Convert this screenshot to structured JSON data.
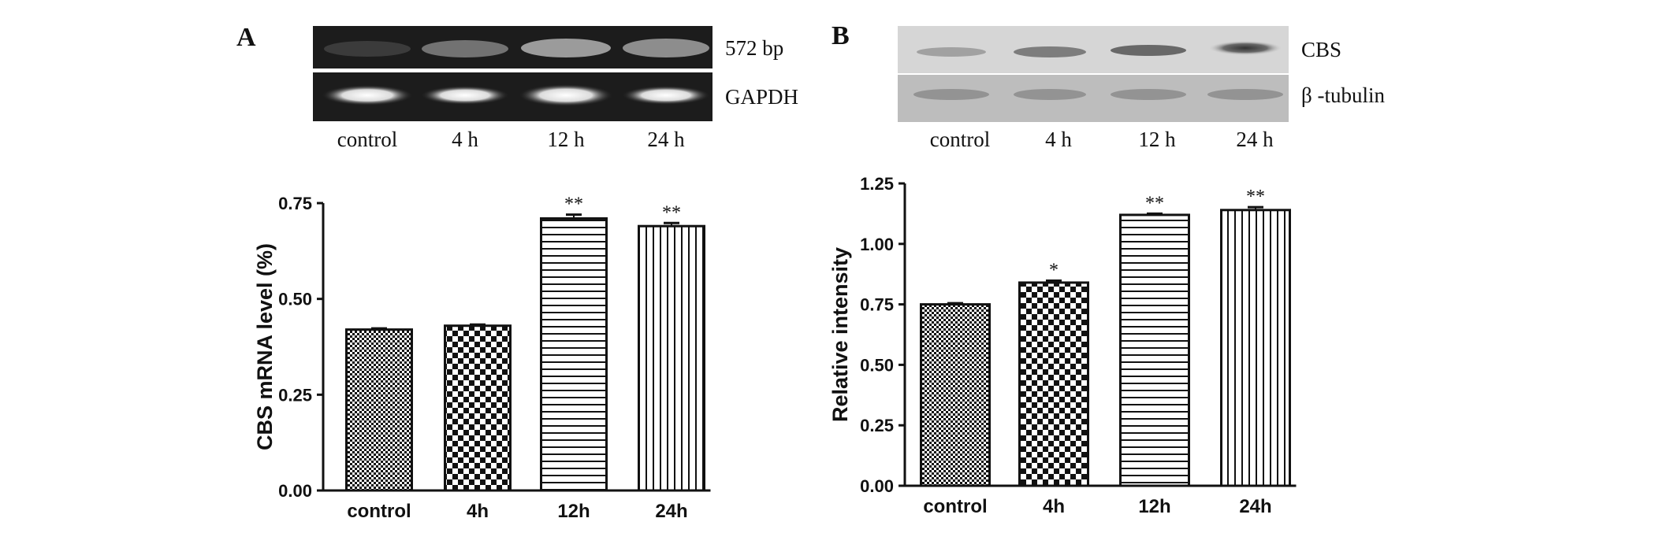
{
  "panels": [
    {
      "label": "A",
      "blot_type": "gel",
      "band_labels": [
        "572 bp",
        "GAPDH"
      ],
      "lane_labels": [
        "control",
        "4 h",
        "12 h",
        "24 h"
      ]
    },
    {
      "label": "B",
      "blot_type": "western",
      "band_labels": [
        "CBS",
        "β -tubulin"
      ],
      "lane_labels": [
        "control",
        "4 h",
        "12 h",
        "24 h"
      ]
    }
  ],
  "colors": {
    "ink": "#111111",
    "gel_bg": "#1c1c1c",
    "blot_bg": "#c9c9c9"
  },
  "chart_data": [
    {
      "type": "bar",
      "panel": "A",
      "categories": [
        "control",
        "4h",
        "12h",
        "24h"
      ],
      "values": [
        0.42,
        0.43,
        0.71,
        0.69
      ],
      "errors": [
        0.003,
        0.003,
        0.01,
        0.008
      ],
      "significance": [
        "",
        "",
        "**",
        "**"
      ],
      "patterns": [
        "fine-check",
        "check",
        "hlines",
        "vlines"
      ],
      "xlabel": "",
      "ylabel": "CBS mRNA level (%)",
      "ylim": [
        0,
        0.75
      ],
      "yticks": [
        "0.00",
        "0.25",
        "0.50",
        "0.75"
      ],
      "ytick_values": [
        0,
        0.25,
        0.5,
        0.75
      ],
      "grid": false
    },
    {
      "type": "bar",
      "panel": "B",
      "categories": [
        "control",
        "4h",
        "12h",
        "24h"
      ],
      "values": [
        0.75,
        0.84,
        1.12,
        1.14
      ],
      "errors": [
        0.005,
        0.008,
        0.005,
        0.012
      ],
      "significance": [
        "",
        "*",
        "**",
        "**"
      ],
      "patterns": [
        "fine-check",
        "check",
        "hlines",
        "vlines"
      ],
      "xlabel": "",
      "ylabel": "Relative intensity",
      "ylim": [
        0,
        1.25
      ],
      "yticks": [
        "0.00",
        "0.25",
        "0.50",
        "0.75",
        "1.00",
        "1.25"
      ],
      "ytick_values": [
        0,
        0.25,
        0.5,
        0.75,
        1.0,
        1.25
      ],
      "grid": false
    }
  ]
}
